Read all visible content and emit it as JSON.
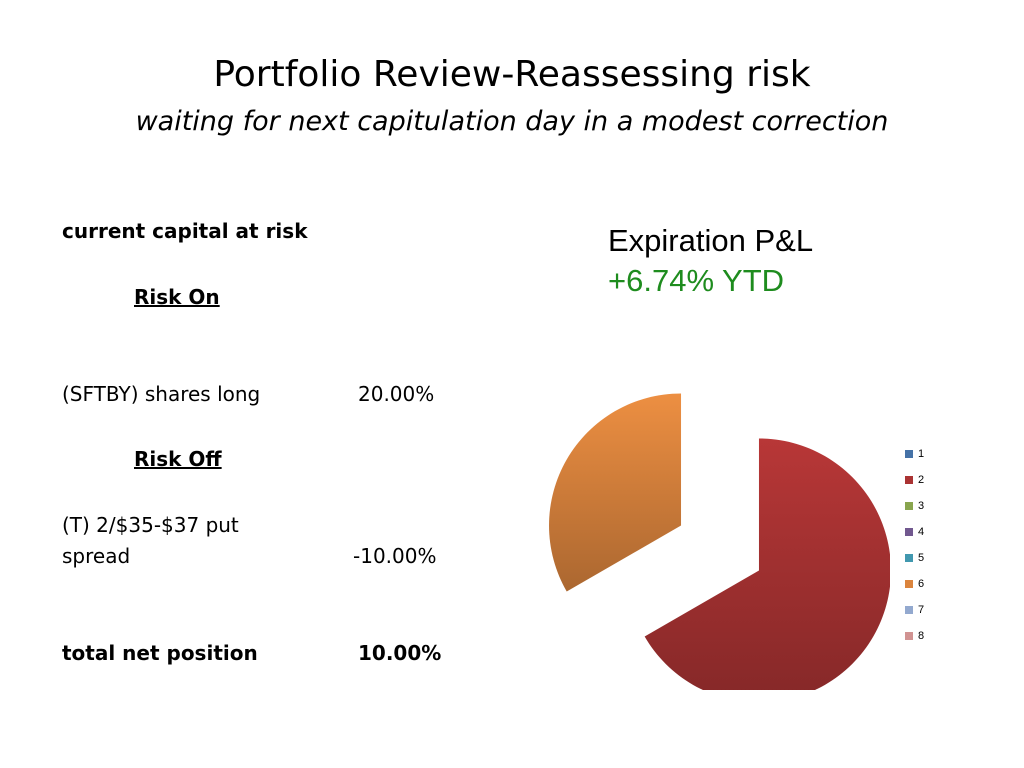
{
  "slide": {
    "title": "Portfolio Review-Reassessing risk",
    "subtitle": "waiting for next capitulation day in a modest correction"
  },
  "table": {
    "heading": "current capital at risk",
    "risk_on": {
      "label": "Risk On",
      "rows": [
        {
          "name": "(SFTBY) shares long",
          "value": "20.00%"
        }
      ]
    },
    "risk_off": {
      "label": "Risk Off",
      "rows": [
        {
          "name_line1": "(T) 2/$35-$37 put",
          "name_line2": "spread",
          "value": "-10.00%"
        }
      ]
    },
    "total": {
      "name": "total net position",
      "value": "10.00%"
    }
  },
  "chart_data": {
    "type": "pie",
    "title": "Expiration P&L",
    "subtitle": "+6.74% YTD",
    "subtitle_color": "#1E8C1E",
    "categories": [
      "1",
      "2",
      "3",
      "4",
      "5",
      "6",
      "7",
      "8"
    ],
    "values": [
      0,
      20,
      0,
      0,
      0,
      10,
      0,
      0
    ],
    "colors": [
      "#4572A7",
      "#AA3333",
      "#89A54E",
      "#71588F",
      "#4198AF",
      "#DB843D",
      "#93A9CF",
      "#D19392"
    ],
    "exploded": true,
    "legend_position": "right"
  }
}
